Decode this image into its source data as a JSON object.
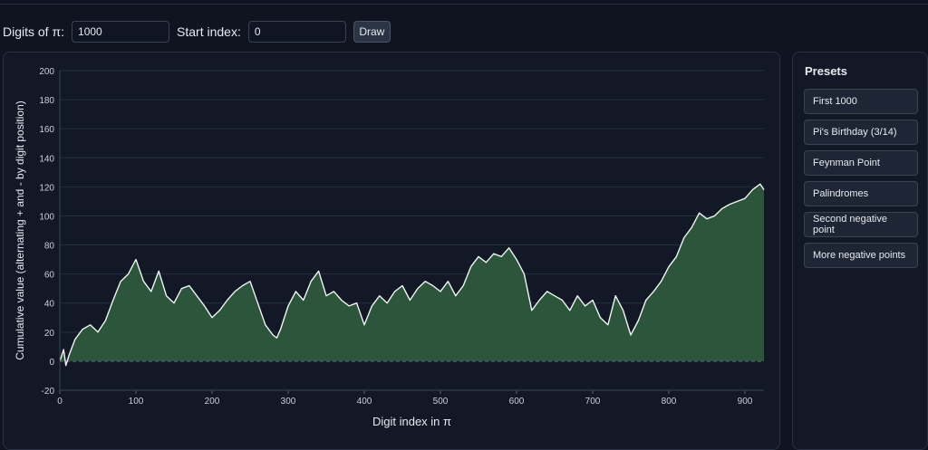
{
  "controls": {
    "digits_label": "Digits of π:",
    "digits_value": "1000",
    "start_label": "Start index:",
    "start_value": "0",
    "draw_label": "Draw"
  },
  "presets": {
    "title": "Presets",
    "items": [
      {
        "label": "First 1000"
      },
      {
        "label": "Pi's Birthday (3/14)"
      },
      {
        "label": "Feynman Point"
      },
      {
        "label": "Palindromes"
      },
      {
        "label": "Second negative point"
      },
      {
        "label": "More negative points"
      }
    ]
  },
  "colors": {
    "background": "#0f1420",
    "panel": "#121826",
    "area_fill": "#2d553b",
    "line": "#f2f4f7"
  },
  "chart_data": {
    "type": "area",
    "title": "",
    "xlabel": "Digit index in π",
    "ylabel": "Cumulative value (alternating + and - by digit position)",
    "xlim": [
      0,
      925
    ],
    "ylim": [
      -20,
      200
    ],
    "x_ticks": [
      0,
      100,
      200,
      300,
      400,
      500,
      600,
      700,
      800,
      900
    ],
    "y_ticks": [
      -20,
      0,
      20,
      40,
      60,
      80,
      100,
      120,
      140,
      160,
      180,
      200
    ],
    "grid": "horizontal",
    "zero_line": "dashed",
    "series": [
      {
        "x": [
          0,
          5,
          8,
          12,
          20,
          30,
          40,
          50,
          60,
          70,
          80,
          90,
          100,
          110,
          120,
          130,
          140,
          150,
          160,
          170,
          180,
          190,
          200,
          210,
          220,
          230,
          240,
          250,
          260,
          270,
          280,
          285,
          290,
          300,
          310,
          320,
          330,
          340,
          350,
          360,
          370,
          380,
          390,
          400,
          410,
          420,
          430,
          440,
          450,
          460,
          470,
          480,
          490,
          500,
          510,
          520,
          530,
          540,
          550,
          560,
          570,
          580,
          590,
          600,
          610,
          620,
          630,
          640,
          650,
          660,
          670,
          680,
          690,
          700,
          710,
          720,
          730,
          740,
          750,
          760,
          770,
          780,
          790,
          800,
          810,
          820,
          830,
          840,
          850,
          860,
          870,
          880,
          890,
          900,
          910,
          920,
          925
        ],
        "y": [
          0,
          8,
          -3,
          4,
          15,
          22,
          25,
          20,
          28,
          42,
          55,
          60,
          70,
          55,
          48,
          62,
          45,
          40,
          50,
          52,
          45,
          38,
          30,
          35,
          42,
          48,
          52,
          55,
          40,
          25,
          18,
          16,
          22,
          38,
          48,
          42,
          55,
          62,
          45,
          48,
          42,
          38,
          40,
          25,
          38,
          45,
          40,
          48,
          52,
          42,
          50,
          55,
          52,
          48,
          55,
          45,
          52,
          65,
          72,
          68,
          74,
          72,
          78,
          70,
          60,
          35,
          42,
          48,
          45,
          42,
          35,
          45,
          38,
          42,
          30,
          25,
          45,
          35,
          18,
          28,
          42,
          48,
          55,
          65,
          72,
          85,
          92,
          102,
          98,
          100,
          105,
          108,
          110,
          112,
          118,
          122,
          118
        ]
      }
    ]
  }
}
